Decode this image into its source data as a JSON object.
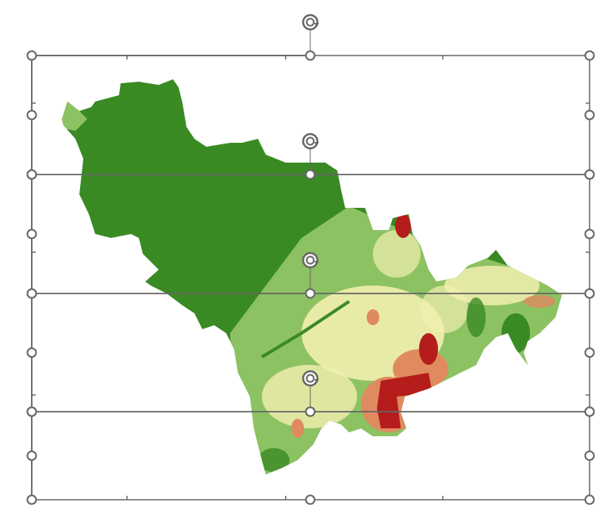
{
  "canvas": {
    "selected_objects": [
      {
        "name": "map-slice-1",
        "rotate_icon": "rotate-handle-icon"
      },
      {
        "name": "map-slice-2",
        "rotate_icon": "rotate-handle-icon"
      },
      {
        "name": "map-slice-3",
        "rotate_icon": "rotate-handle-icon"
      },
      {
        "name": "map-slice-4",
        "rotate_icon": "rotate-handle-icon"
      }
    ],
    "handle_icon": "resize-handle-icon"
  },
  "colors": {
    "selection": "#666666",
    "map_dark_green": "#3a8a24",
    "map_light_green": "#8dc262",
    "map_pale_yellow": "#f2efb0",
    "map_orange": "#e08a60",
    "map_red": "#b51c1c"
  }
}
